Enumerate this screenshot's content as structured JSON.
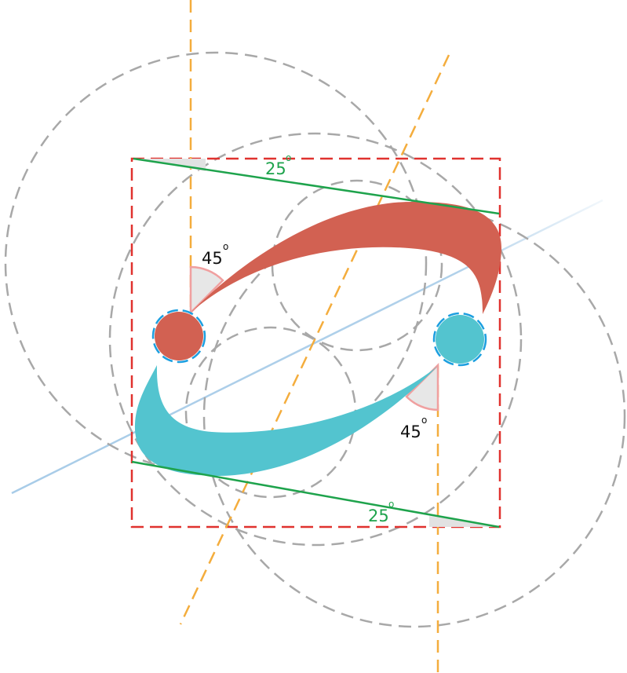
{
  "labels": {
    "top_angle": "25",
    "bottom_angle": "25",
    "left_angle": "45",
    "right_angle": "45",
    "degree_mark": "o"
  },
  "colors": {
    "red_shape": "#d26152",
    "cyan_shape": "#53c4cf",
    "green_line": "#1ea34c",
    "orange_guide": "#f4ad3d",
    "gray_circle": "#a8a8a8",
    "red_frame": "#e0322f",
    "blue_axis": "#a8cce8",
    "blue_dash": "#1c9fe0",
    "angle_fill": "#e7e7e7",
    "angle_stroke": "#f0a0a0"
  }
}
